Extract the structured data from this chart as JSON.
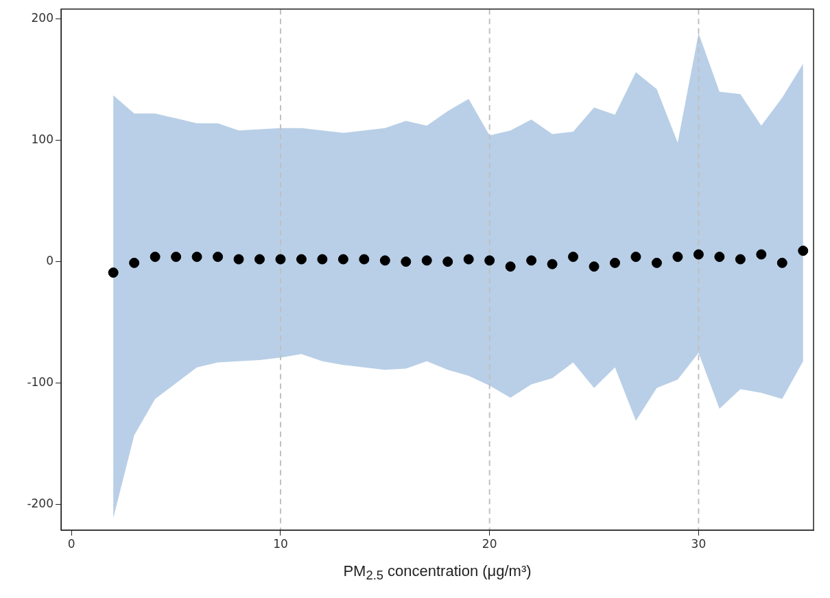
{
  "chart_data": {
    "type": "scatter",
    "xlabel": "PM$_{2.5}$ concentration  (μg/m³)",
    "xlim": [
      -0.5,
      35.5
    ],
    "xticks": [
      0,
      10,
      20,
      30
    ],
    "ylim": [
      -221,
      208
    ],
    "yticks": [
      -200,
      -100,
      0,
      100,
      200
    ],
    "grid": false,
    "legend": false,
    "marker": "circle",
    "ref_lines": [
      {
        "axis": "x",
        "value": 10,
        "color": "#c0c0c0",
        "line_style": "dashed"
      },
      {
        "axis": "x",
        "value": 20,
        "color": "#c0c0c0",
        "line_style": "dashed"
      },
      {
        "axis": "x",
        "value": 30,
        "color": "#c0c0c0",
        "line_style": "dashed"
      }
    ],
    "series": [
      {
        "color": "#000000",
        "x": [
          2,
          3,
          4,
          5,
          6,
          7,
          8,
          9,
          10,
          11,
          12,
          13,
          14,
          15,
          16,
          17,
          18,
          19,
          20,
          21,
          22,
          23,
          24,
          25,
          26,
          27,
          28,
          29,
          30,
          31,
          32,
          33,
          34,
          35
        ],
        "values": [
          -9,
          -1,
          4,
          4,
          4,
          4,
          2,
          2,
          2,
          2,
          2,
          2,
          2,
          1,
          0,
          1,
          0,
          2,
          1,
          -4,
          1,
          -2,
          4,
          -4,
          -1,
          4,
          -1,
          4,
          6,
          4,
          2,
          6,
          -1,
          9
        ],
        "upper": [
          137,
          122,
          122,
          118,
          114,
          114,
          108,
          109,
          110,
          110,
          108,
          106,
          108,
          110,
          116,
          112,
          124,
          134,
          104,
          108,
          117,
          105,
          107,
          127,
          121,
          156,
          142,
          98,
          188,
          140,
          138,
          112,
          135,
          163
        ],
        "lower": [
          -211,
          -143,
          -113,
          -100,
          -87,
          -83,
          -82,
          -81,
          -79,
          -76,
          -82,
          -85,
          -87,
          -89,
          -88,
          -82,
          -89,
          -94,
          -102,
          -112,
          -101,
          -96,
          -83,
          -104,
          -87,
          -131,
          -104,
          -97,
          -75,
          -121,
          -105,
          -108,
          -113,
          -82
        ]
      }
    ]
  }
}
